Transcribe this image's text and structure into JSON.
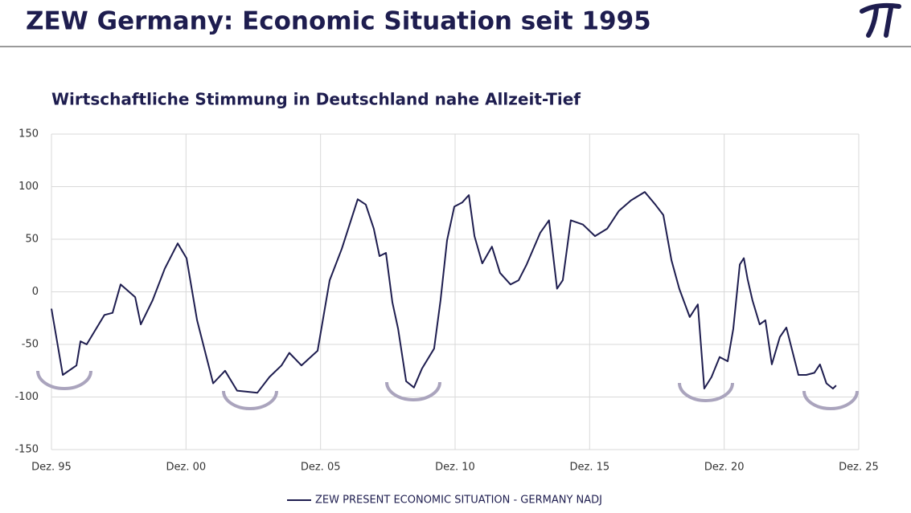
{
  "header": {
    "title": "ZEW Germany: Economic Situation seit 1995"
  },
  "chart_data": {
    "type": "line",
    "title": "Wirtschaftliche Stimmung in Deutschland nahe Allzeit-Tief",
    "x": [
      1995.92,
      1996.34,
      1996.85,
      1997.0,
      1997.23,
      1997.89,
      1998.19,
      1998.49,
      1999.03,
      1999.24,
      1999.68,
      2000.13,
      2000.61,
      2000.94,
      2001.33,
      2001.72,
      2001.93,
      2002.37,
      2002.82,
      2003.57,
      2004.02,
      2004.47,
      2004.76,
      2005.21,
      2005.81,
      2006.26,
      2006.71,
      2007.3,
      2007.6,
      2007.9,
      2008.11,
      2008.35,
      2008.59,
      2008.8,
      2009.1,
      2009.39,
      2009.69,
      2010.14,
      2010.38,
      2010.62,
      2010.89,
      2011.19,
      2011.43,
      2011.64,
      2011.93,
      2012.29,
      2012.59,
      2012.98,
      2013.28,
      2013.58,
      2014.08,
      2014.41,
      2014.71,
      2014.92,
      2015.22,
      2015.67,
      2016.12,
      2016.57,
      2017.01,
      2017.46,
      2017.97,
      2018.36,
      2018.66,
      2018.96,
      2019.25,
      2019.64,
      2019.94,
      2020.18,
      2020.45,
      2020.75,
      2021.05,
      2021.26,
      2021.5,
      2021.65,
      2021.79,
      2021.97,
      2022.24,
      2022.45,
      2022.69,
      2022.99,
      2023.23,
      2023.47,
      2023.68,
      2023.97,
      2024.27,
      2024.48,
      2024.72,
      2024.96,
      2025.08
    ],
    "series": [
      {
        "name": "ZEW PRESENT ECONOMIC SITUATION - GERMANY NADJ",
        "color": "#1e1d4f",
        "values": [
          -16,
          -79,
          -70,
          -47,
          -50,
          -22,
          -20,
          7,
          -5,
          -31,
          -8,
          22,
          46,
          32,
          -27,
          -66,
          -87,
          -75,
          -94,
          -96,
          -81,
          -70,
          -58,
          -70,
          -56,
          11,
          41,
          88,
          83,
          60,
          34,
          37,
          -10,
          -35,
          -85,
          -91,
          -73,
          -54,
          -8,
          49,
          81,
          85,
          92,
          53,
          27,
          43,
          18,
          7,
          11,
          26,
          56,
          68,
          3,
          11,
          68,
          64,
          53,
          60,
          77,
          87,
          95,
          83,
          73,
          30,
          3,
          -24,
          -12,
          -92,
          -81,
          -62,
          -66,
          -35,
          26,
          32,
          12,
          -8,
          -31,
          -27,
          -69,
          -43,
          -34,
          -58,
          -79,
          -79,
          -77,
          -69,
          -87,
          -92,
          -89
        ]
      }
    ],
    "xlim": [
      1995.92,
      2025.92
    ],
    "xticks": [
      {
        "value": 1995.92,
        "label": "Dez. 95"
      },
      {
        "value": 2000.92,
        "label": "Dez. 00"
      },
      {
        "value": 2005.92,
        "label": "Dez. 05"
      },
      {
        "value": 2010.92,
        "label": "Dez. 10"
      },
      {
        "value": 2015.92,
        "label": "Dez. 15"
      },
      {
        "value": 2020.92,
        "label": "Dez. 20"
      },
      {
        "value": 2025.92,
        "label": "Dez. 25"
      }
    ],
    "ylim": [
      -150,
      150
    ],
    "yticks": [
      -150,
      -100,
      -50,
      0,
      50,
      100,
      150
    ],
    "grid": true
  }
}
